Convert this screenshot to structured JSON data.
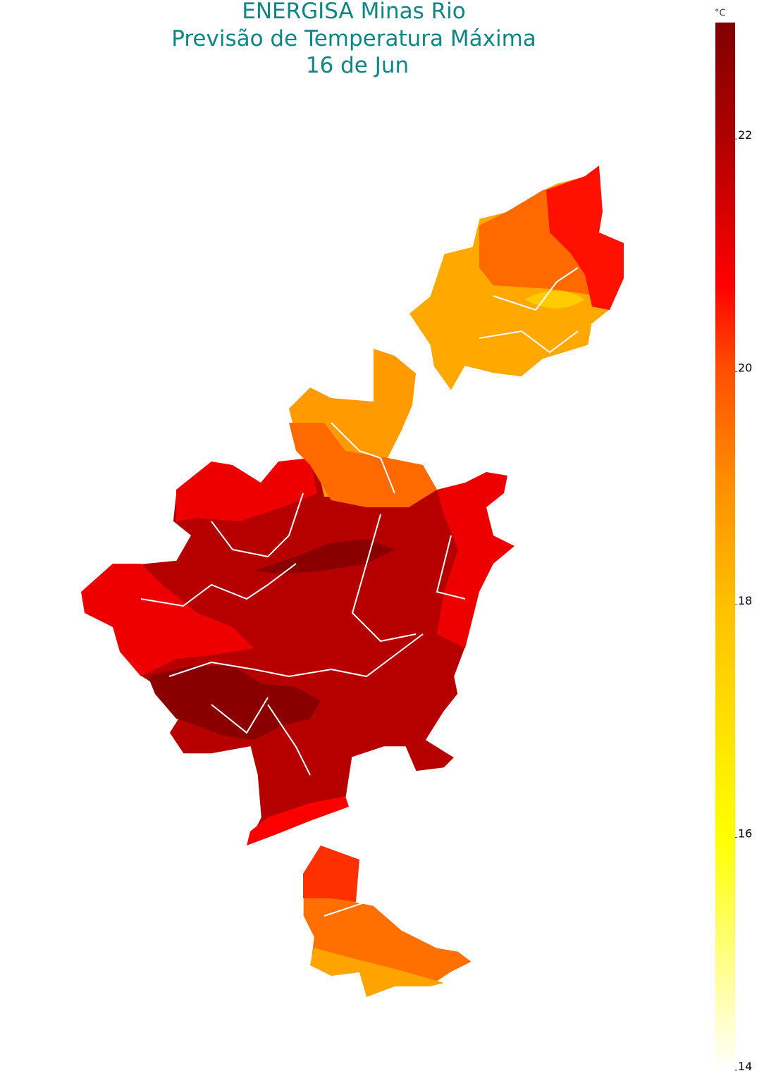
{
  "chart_data": {
    "type": "choropleth",
    "title": [
      "ENERGISA Minas Rio",
      "Previsão de Temperatura Máxima",
      "16 de Jun"
    ],
    "colorbar": {
      "title": "°C",
      "range": [
        14,
        23
      ],
      "ticks": [
        14,
        16,
        18,
        20,
        22
      ]
    },
    "colorscale": [
      [
        0,
        "#ffffff"
      ],
      [
        0.222,
        "#ffff00"
      ],
      [
        0.444,
        "#ffc000"
      ],
      [
        0.556,
        "#ff9000"
      ],
      [
        0.667,
        "#ff5000"
      ],
      [
        0.75,
        "#ff0000"
      ],
      [
        0.889,
        "#b00000"
      ],
      [
        1,
        "#800000"
      ]
    ],
    "values": [
      21.9,
      21.0,
      18.8,
      19.6,
      22.8,
      22.8,
      20.8,
      18.5,
      19.6,
      20.6,
      17.6,
      19.5,
      18.6,
      20.3
    ]
  }
}
